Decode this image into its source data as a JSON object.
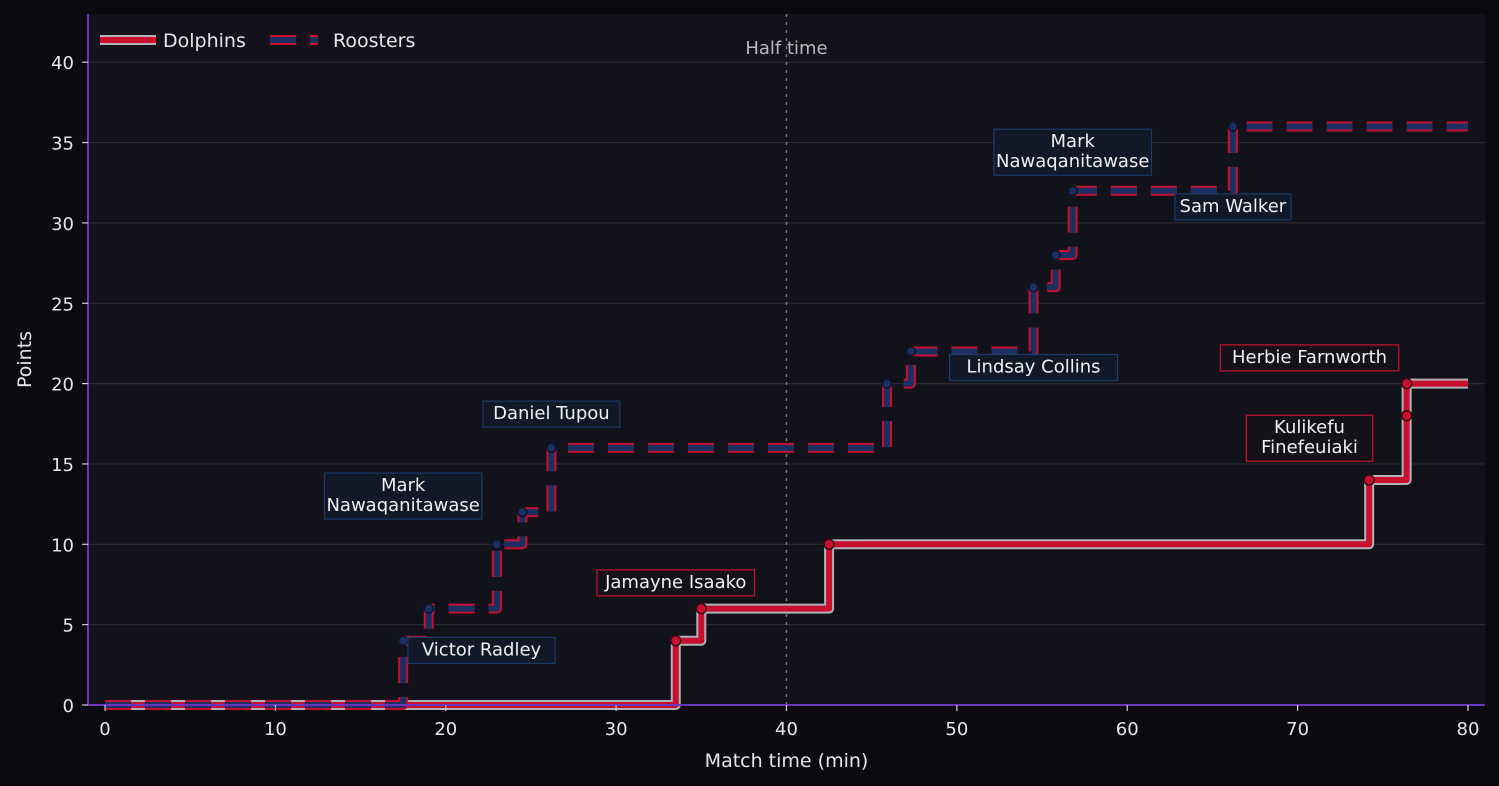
{
  "chart_data": {
    "type": "line",
    "step": true,
    "xlabel": "Match time (min)",
    "ylabel": "Points",
    "xlim": [
      -1,
      81
    ],
    "ylim": [
      0,
      43
    ],
    "xticks": [
      0,
      10,
      20,
      30,
      40,
      50,
      60,
      70,
      80
    ],
    "yticks": [
      0,
      5,
      10,
      15,
      20,
      25,
      30,
      35,
      40
    ],
    "grid": "horizontal",
    "legend_position": "top-left",
    "vline": {
      "x": 40,
      "label": "Half time"
    },
    "colors": {
      "background": "#0b0b0f",
      "plot_background": "#12121a",
      "grid": "#2a2a33",
      "axis": "#6a35c0",
      "dolphins": "#c8102e",
      "dolphins_outline": "#b0b0b8",
      "roosters": "#1c2f63",
      "roosters_outline": "#c8102e",
      "text": "#e6e6ea"
    },
    "series": [
      {
        "name": "Dolphins",
        "style": "solid",
        "x": [
          0,
          33.5,
          35,
          42.5,
          74.2,
          76.4,
          76.4,
          80
        ],
        "y": [
          0,
          4,
          6,
          10,
          14,
          18,
          20,
          20
        ],
        "markers": [
          [
            33.5,
            4
          ],
          [
            35,
            6
          ],
          [
            42.5,
            10
          ],
          [
            74.2,
            14
          ],
          [
            76.4,
            18
          ],
          [
            76.4,
            20
          ]
        ]
      },
      {
        "name": "Roosters",
        "style": "dashed",
        "x": [
          0,
          17.5,
          19,
          23,
          24.5,
          26.2,
          45.9,
          47.3,
          54.5,
          55.8,
          56.8,
          66.2,
          80
        ],
        "y": [
          0,
          4,
          6,
          10,
          12,
          16,
          20,
          22,
          26,
          28,
          32,
          36,
          36
        ],
        "markers": [
          [
            17.5,
            4
          ],
          [
            19,
            6
          ],
          [
            23,
            10
          ],
          [
            24.5,
            12
          ],
          [
            26.2,
            16
          ],
          [
            45.9,
            20
          ],
          [
            47.3,
            22
          ],
          [
            54.5,
            26
          ],
          [
            55.8,
            28
          ],
          [
            56.8,
            32
          ],
          [
            66.2,
            36
          ]
        ]
      }
    ],
    "annotations": [
      {
        "lines": [
          "Victor Radley"
        ],
        "x": 22.1,
        "y": 3.4,
        "team": "Roosters"
      },
      {
        "lines": [
          "Mark",
          "Nawaqanitawase"
        ],
        "x": 17.5,
        "y": 13,
        "team": "Roosters"
      },
      {
        "lines": [
          "Daniel Tupou"
        ],
        "x": 26.2,
        "y": 18.1,
        "team": "Roosters"
      },
      {
        "lines": [
          "Jamayne Isaako"
        ],
        "x": 33.5,
        "y": 7.6,
        "team": "Dolphins"
      },
      {
        "lines": [
          "Lindsay Collins"
        ],
        "x": 54.5,
        "y": 21,
        "team": "Roosters"
      },
      {
        "lines": [
          "Mark",
          "Nawaqanitawase"
        ],
        "x": 56.8,
        "y": 34.4,
        "team": "Roosters"
      },
      {
        "lines": [
          "Sam Walker"
        ],
        "x": 66.2,
        "y": 31,
        "team": "Roosters"
      },
      {
        "lines": [
          "Herbie Farnworth"
        ],
        "x": 70.7,
        "y": 21.6,
        "team": "Dolphins"
      },
      {
        "lines": [
          "Kulikefu",
          "Finefeuiaki"
        ],
        "x": 70.7,
        "y": 16.6,
        "team": "Dolphins"
      }
    ]
  }
}
